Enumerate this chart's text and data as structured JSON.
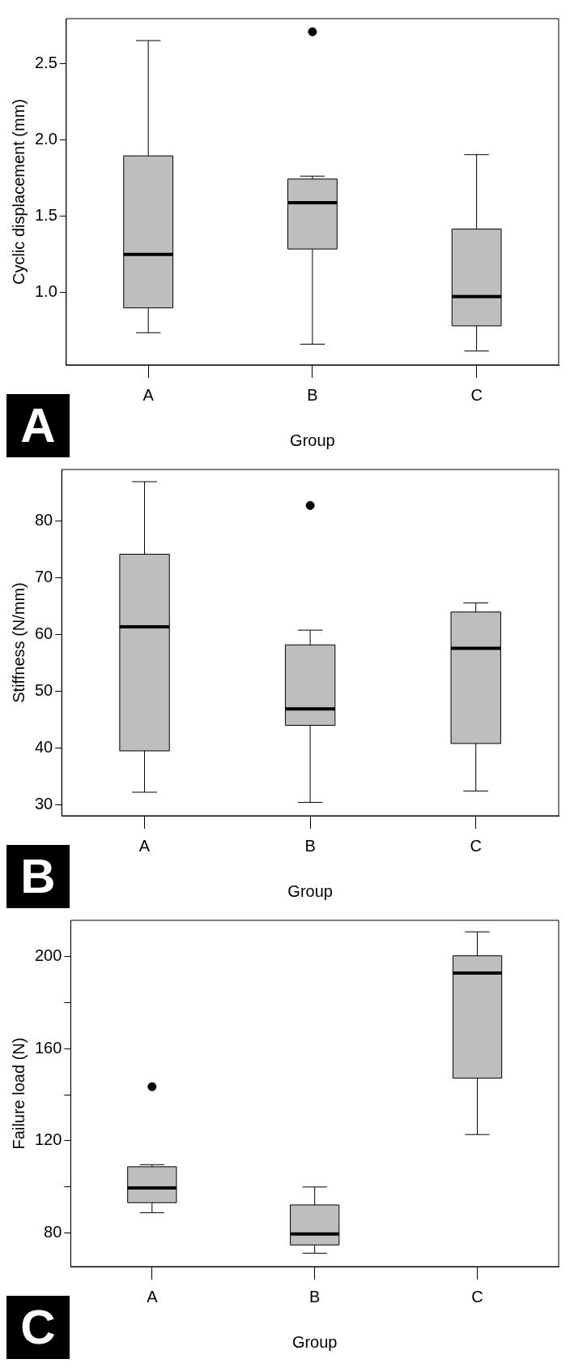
{
  "chart_data": [
    {
      "type": "box",
      "xlabel": "Group",
      "ylabel": "Cyclic displacement (mm)",
      "categories": [
        "A",
        "B",
        "C"
      ],
      "color": "#bebebe",
      "ylim": [
        0.525,
        2.796
      ],
      "yticks": [
        {
          "value": 1,
          "label": "1.0"
        },
        1.5,
        {
          "value": 2,
          "label": "2.0"
        },
        2.5
      ],
      "annotations": [
        "A"
      ],
      "boxes": [
        {
          "low": 0.736,
          "q1": 0.899,
          "median": 1.25,
          "q3": 1.896,
          "high": 2.652
        },
        {
          "low": 0.661,
          "q1": 1.285,
          "median": 1.589,
          "q3": 1.744,
          "high": 1.763,
          "outliers": [
            2.71
          ]
        },
        {
          "low": 0.616,
          "q1": 0.781,
          "median": 0.973,
          "q3": 1.416,
          "high": 1.904
        }
      ]
    },
    {
      "type": "box",
      "xlabel": "Group",
      "ylabel": "Stiffness (N/mm)",
      "categories": [
        "A",
        "B",
        "C"
      ],
      "color": "#bebebe",
      "ylim": [
        28.05,
        89.15
      ],
      "yticks": [
        30,
        40,
        50,
        60,
        70,
        80
      ],
      "annotations": [
        "B"
      ],
      "boxes": [
        {
          "low": 32.2,
          "q1": 39.5,
          "median": 61.4,
          "q3": 74.2,
          "high": 87.0
        },
        {
          "low": 30.4,
          "q1": 44.0,
          "median": 46.9,
          "q3": 58.2,
          "high": 60.8,
          "outliers": [
            82.8
          ]
        },
        {
          "low": 32.4,
          "q1": 40.8,
          "median": 57.6,
          "q3": 64.0,
          "high": 65.6
        }
      ]
    },
    {
      "type": "box",
      "xlabel": "Group",
      "ylabel": "Failure load (N)",
      "categories": [
        "A",
        "B",
        "C"
      ],
      "color": "#bebebe",
      "ylim": [
        65.3,
        215.8
      ],
      "yticks": [
        80,
        {
          "value": 100,
          "label": null
        },
        120,
        {
          "value": 140,
          "label": null
        },
        160,
        {
          "value": 180,
          "label": null
        },
        200
      ],
      "annotations": [
        "C"
      ],
      "boxes": [
        {
          "low": 88.7,
          "q1": 93.1,
          "median": 99.5,
          "q3": 108.7,
          "high": 109.6,
          "outliers": [
            143.5
          ]
        },
        {
          "low": 71.1,
          "q1": 74.7,
          "median": 79.5,
          "q3": 92.1,
          "high": 99.9
        },
        {
          "low": 122.7,
          "q1": 147.2,
          "median": 192.9,
          "q3": 200.4,
          "high": 210.8
        }
      ]
    }
  ]
}
